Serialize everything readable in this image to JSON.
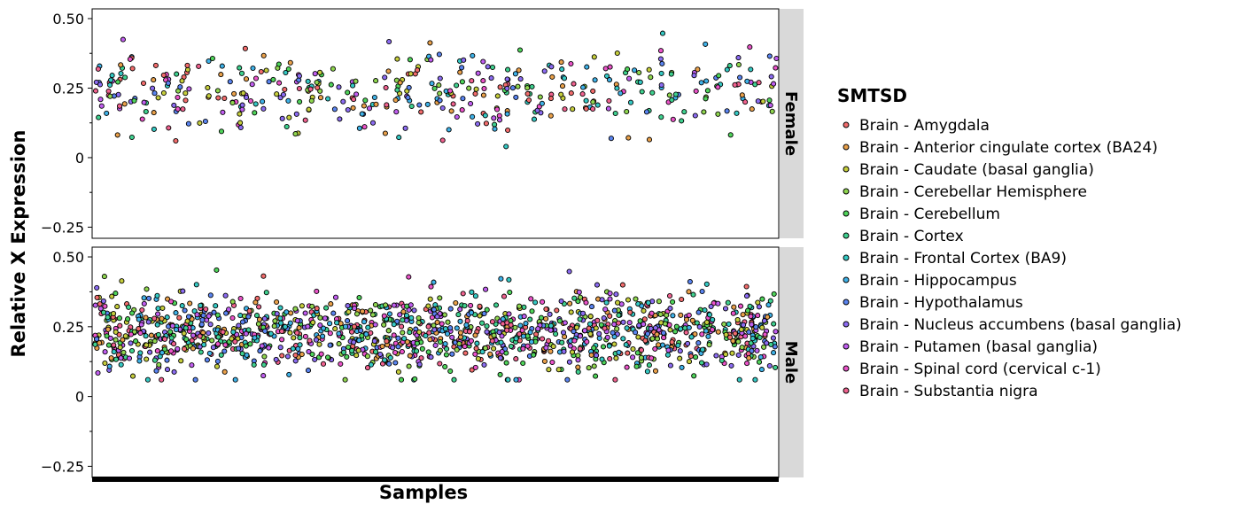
{
  "chart_data": {
    "type": "scatter",
    "xlabel": "Samples",
    "ylabel": "Relative X Expression",
    "ylim": [
      -0.29,
      0.535
    ],
    "yticks": [
      {
        "value": 0.5,
        "label": "0.50"
      },
      {
        "value": 0.25,
        "label": "0.25"
      },
      {
        "value": 0,
        "label": "0"
      },
      {
        "value": -0.25,
        "label": "−0.25"
      }
    ],
    "grid": false,
    "legend_position": "right",
    "legend_title": "SMTSD",
    "series": [
      {
        "name": "Brain - Amygdala",
        "color": "#f26c6c"
      },
      {
        "name": "Brain - Anterior cingulate cortex (BA24)",
        "color": "#e9a04a"
      },
      {
        "name": "Brain - Caudate (basal ganglia)",
        "color": "#c5cd3c"
      },
      {
        "name": "Brain - Cerebellar Hemisphere",
        "color": "#8fd64f"
      },
      {
        "name": "Brain - Cerebellum",
        "color": "#4fd45a"
      },
      {
        "name": "Brain - Cortex",
        "color": "#3fd18f"
      },
      {
        "name": "Brain - Frontal Cortex (BA9)",
        "color": "#35c9c4"
      },
      {
        "name": "Brain - Hippocampus",
        "color": "#3fb2e8"
      },
      {
        "name": "Brain - Hypothalamus",
        "color": "#5a84f0"
      },
      {
        "name": "Brain - Nucleus accumbens (basal ganglia)",
        "color": "#8c6cf2"
      },
      {
        "name": "Brain - Putamen (basal ganglia)",
        "color": "#c15ef0"
      },
      {
        "name": "Brain - Spinal cord (cervical c-1)",
        "color": "#ea54c9"
      },
      {
        "name": "Brain - Substantia nigra",
        "color": "#f0628f"
      }
    ],
    "facets": [
      {
        "label": "Female",
        "n_points": 460,
        "y_mean": 0.23,
        "y_sd": 0.075,
        "y_min": 0.04,
        "y_max": 0.49
      },
      {
        "label": "Male",
        "n_points": 1450,
        "y_mean": 0.23,
        "y_sd": 0.07,
        "y_min": 0.06,
        "y_max": 0.5
      }
    ]
  }
}
